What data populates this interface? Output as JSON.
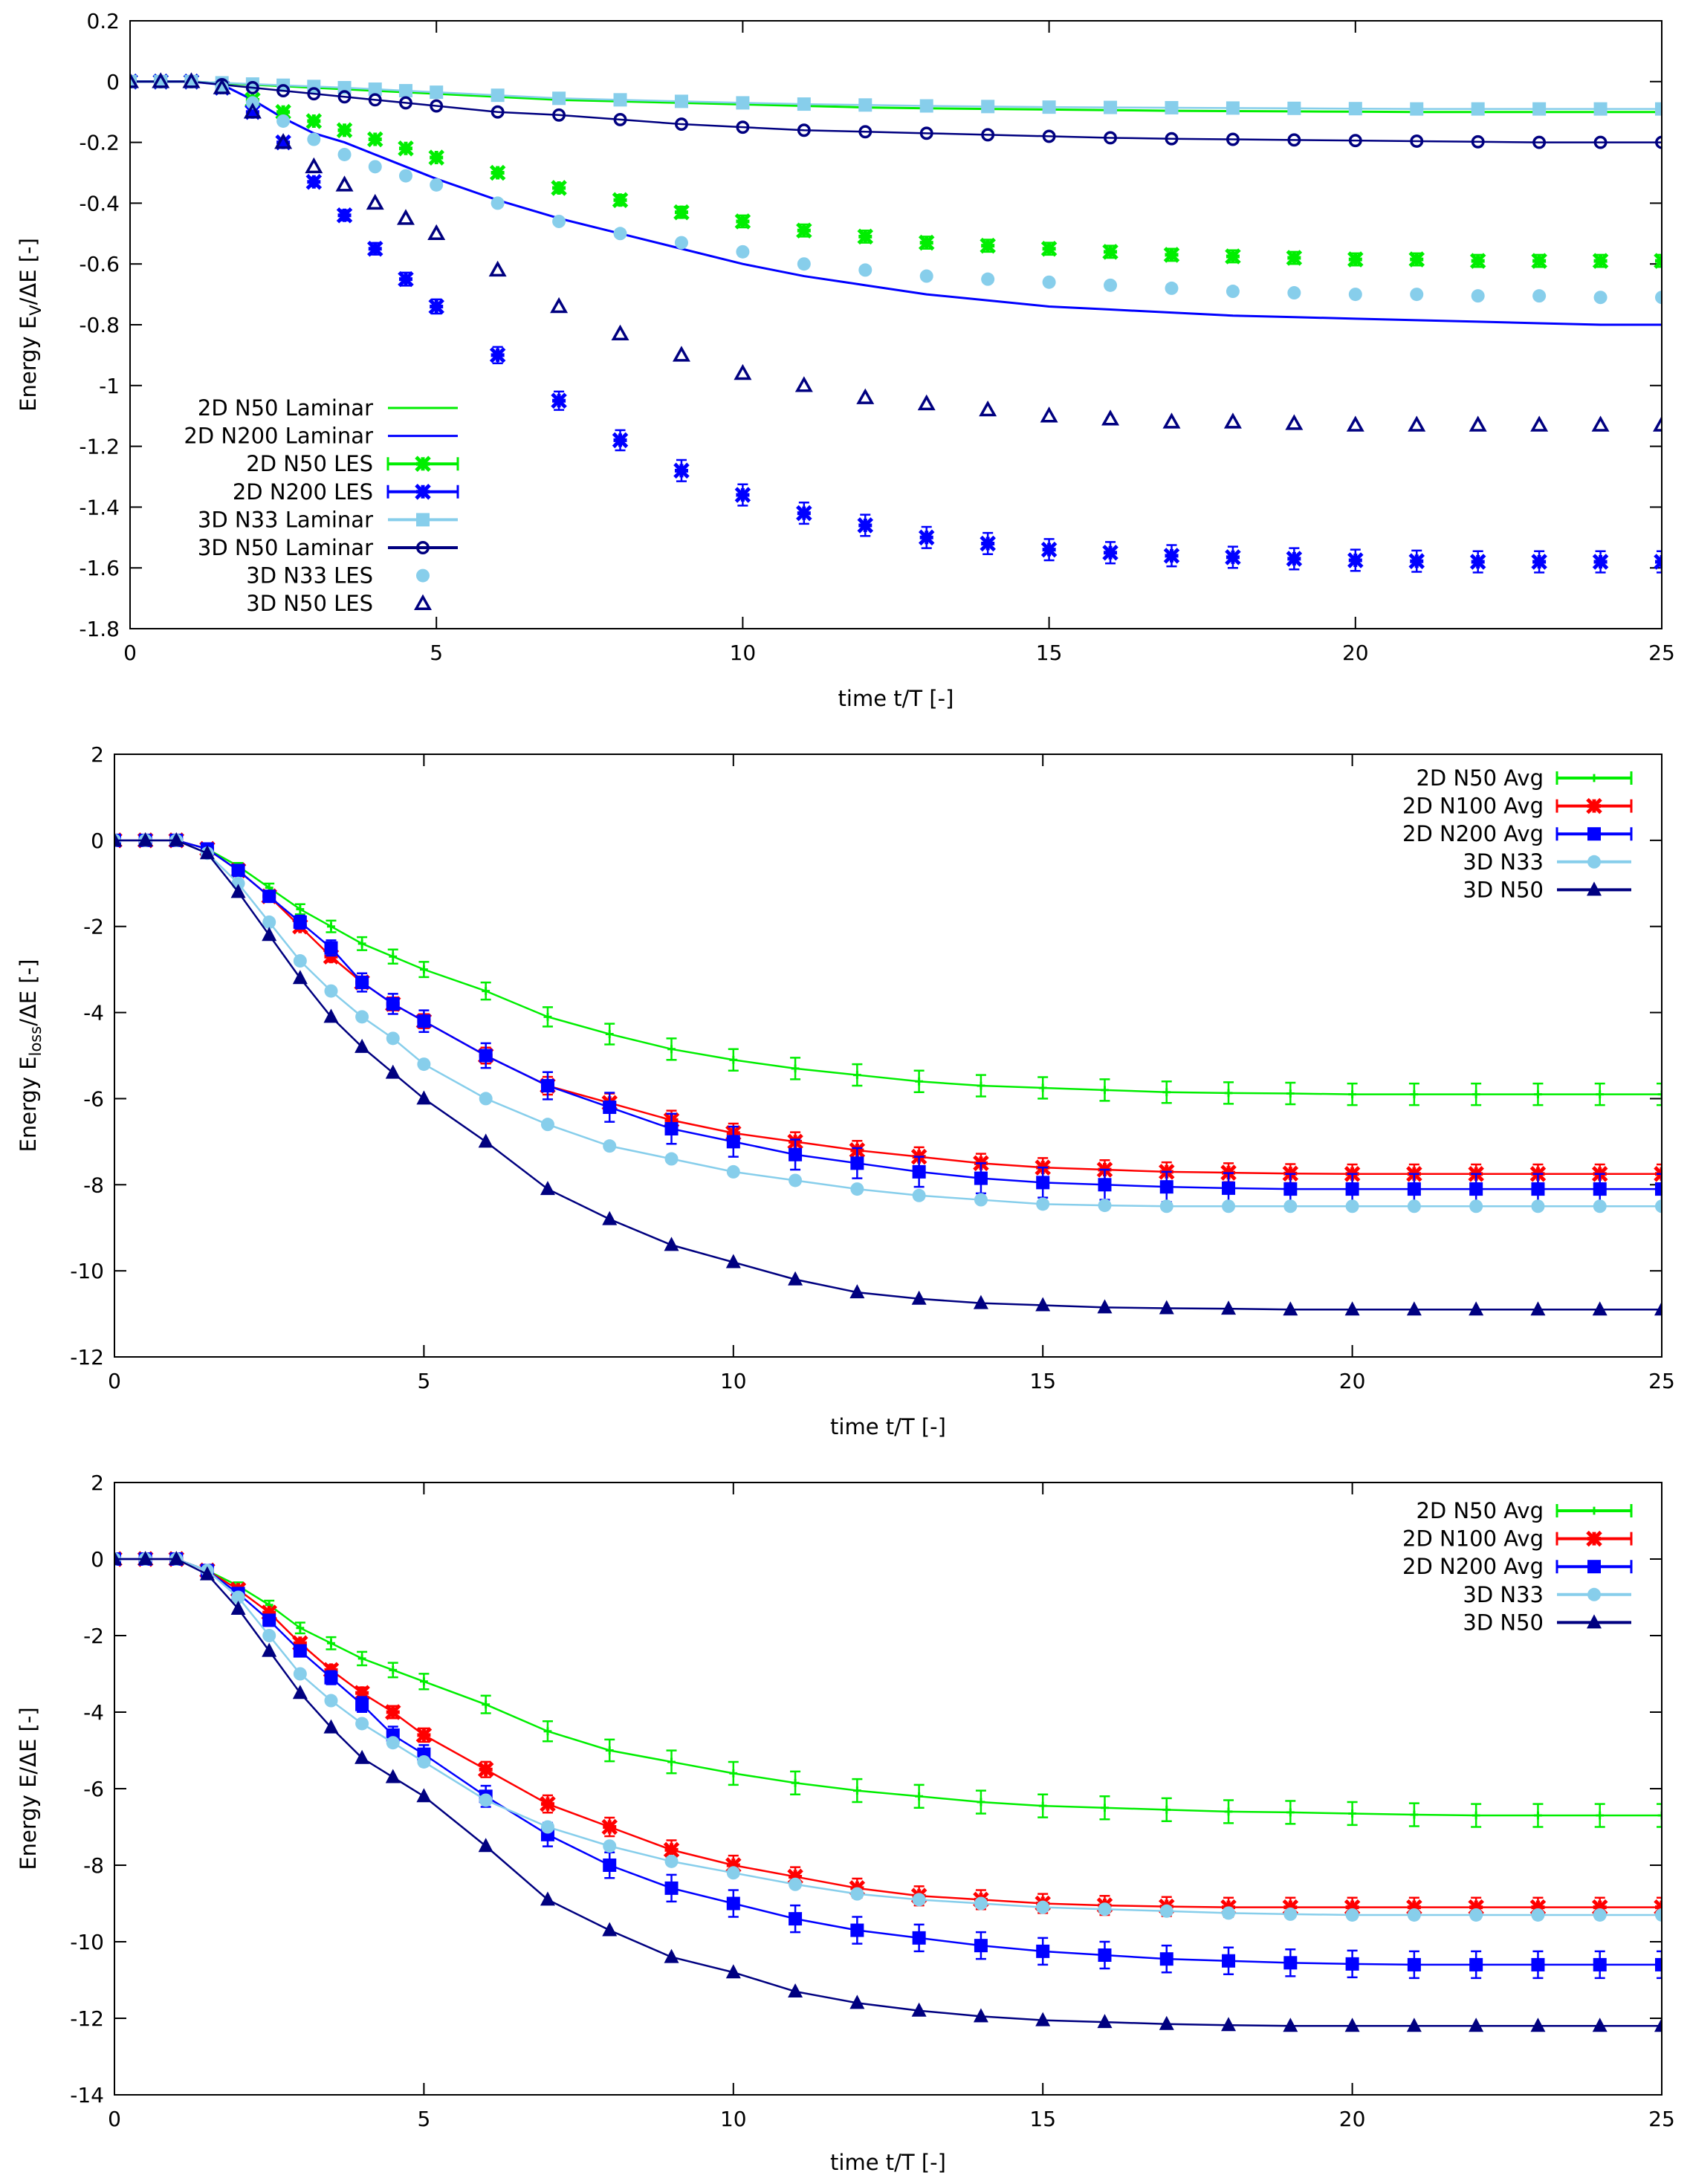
{
  "chart_data": [
    {
      "type": "line",
      "xlabel": "time t/T [-]",
      "ylabel": {
        "prefix": "Energy E",
        "sub": "V",
        "suffix": "/ΔE [-]"
      },
      "xlim": [
        0,
        25
      ],
      "ylim": [
        -1.8,
        0.2
      ],
      "xticks": [
        0,
        5,
        10,
        15,
        20,
        25
      ],
      "yticks": [
        0.2,
        0,
        -0.2,
        -0.4,
        -0.6,
        -0.8,
        -1,
        -1.2,
        -1.4,
        -1.6,
        -1.8
      ],
      "legend_position": "bottom-left",
      "x": [
        0,
        0.5,
        1,
        1.5,
        2,
        2.5,
        3,
        3.5,
        4,
        4.5,
        5,
        6,
        7,
        8,
        9,
        10,
        11,
        12,
        13,
        14,
        15,
        16,
        17,
        18,
        19,
        20,
        21,
        22,
        23,
        24,
        25
      ],
      "series": [
        {
          "name": "2D N50 Laminar",
          "color": "#00ee00",
          "marker": "none",
          "line": true,
          "err": 0,
          "values": [
            0,
            0,
            0,
            -0.005,
            -0.01,
            -0.015,
            -0.02,
            -0.025,
            -0.03,
            -0.035,
            -0.04,
            -0.05,
            -0.06,
            -0.065,
            -0.07,
            -0.075,
            -0.08,
            -0.085,
            -0.088,
            -0.09,
            -0.092,
            -0.094,
            -0.096,
            -0.097,
            -0.098,
            -0.099,
            -0.1,
            -0.1,
            -0.1,
            -0.1,
            -0.1
          ]
        },
        {
          "name": "2D N200 Laminar",
          "color": "#0000ff",
          "marker": "none",
          "line": true,
          "err": 0,
          "values": [
            0,
            0,
            0,
            -0.01,
            -0.06,
            -0.12,
            -0.17,
            -0.2,
            -0.24,
            -0.28,
            -0.32,
            -0.39,
            -0.45,
            -0.5,
            -0.55,
            -0.6,
            -0.64,
            -0.67,
            -0.7,
            -0.72,
            -0.74,
            -0.75,
            -0.76,
            -0.77,
            -0.775,
            -0.78,
            -0.785,
            -0.79,
            -0.795,
            -0.8,
            -0.8
          ]
        },
        {
          "name": "2D N50 LES",
          "color": "#00ee00",
          "marker": "star",
          "line": false,
          "err": 0.02,
          "values": [
            0,
            0,
            0,
            -0.02,
            -0.06,
            -0.1,
            -0.13,
            -0.16,
            -0.19,
            -0.22,
            -0.25,
            -0.3,
            -0.35,
            -0.39,
            -0.43,
            -0.46,
            -0.49,
            -0.51,
            -0.53,
            -0.54,
            -0.55,
            -0.56,
            -0.57,
            -0.575,
            -0.58,
            -0.585,
            -0.585,
            -0.59,
            -0.59,
            -0.59,
            -0.59
          ]
        },
        {
          "name": "2D N200 LES",
          "color": "#0000ff",
          "marker": "star",
          "line": false,
          "err": 0.035,
          "values": [
            0,
            0,
            0,
            -0.02,
            -0.1,
            -0.2,
            -0.33,
            -0.44,
            -0.55,
            -0.65,
            -0.74,
            -0.9,
            -1.05,
            -1.18,
            -1.28,
            -1.36,
            -1.42,
            -1.46,
            -1.5,
            -1.52,
            -1.54,
            -1.55,
            -1.56,
            -1.565,
            -1.57,
            -1.575,
            -1.578,
            -1.58,
            -1.58,
            -1.58,
            -1.58
          ]
        },
        {
          "name": "3D N33 Laminar",
          "color": "#87ceeb",
          "marker": "square",
          "line": true,
          "err": 0,
          "values": [
            0,
            0,
            0,
            -0.004,
            -0.008,
            -0.012,
            -0.016,
            -0.02,
            -0.025,
            -0.03,
            -0.035,
            -0.045,
            -0.055,
            -0.06,
            -0.065,
            -0.07,
            -0.074,
            -0.077,
            -0.08,
            -0.082,
            -0.084,
            -0.085,
            -0.086,
            -0.087,
            -0.088,
            -0.089,
            -0.09,
            -0.09,
            -0.09,
            -0.09,
            -0.09
          ]
        },
        {
          "name": "3D N50 Laminar",
          "color": "#000080",
          "marker": "circle-open",
          "line": true,
          "err": 0,
          "values": [
            0,
            0,
            0,
            -0.01,
            -0.02,
            -0.03,
            -0.04,
            -0.05,
            -0.06,
            -0.07,
            -0.08,
            -0.1,
            -0.11,
            -0.125,
            -0.14,
            -0.15,
            -0.16,
            -0.165,
            -0.17,
            -0.175,
            -0.18,
            -0.185,
            -0.188,
            -0.19,
            -0.192,
            -0.194,
            -0.196,
            -0.198,
            -0.2,
            -0.2,
            -0.2
          ]
        },
        {
          "name": "3D N33 LES",
          "color": "#87ceeb",
          "marker": "circle",
          "line": false,
          "err": 0,
          "values": [
            0,
            0,
            0,
            -0.02,
            -0.07,
            -0.13,
            -0.19,
            -0.24,
            -0.28,
            -0.31,
            -0.34,
            -0.4,
            -0.46,
            -0.5,
            -0.53,
            -0.56,
            -0.6,
            -0.62,
            -0.64,
            -0.65,
            -0.66,
            -0.67,
            -0.68,
            -0.69,
            -0.695,
            -0.7,
            -0.7,
            -0.705,
            -0.705,
            -0.71,
            -0.71
          ]
        },
        {
          "name": "3D N50 LES",
          "color": "#000080",
          "marker": "triangle-open",
          "line": false,
          "err": 0,
          "values": [
            0,
            0,
            0,
            -0.02,
            -0.1,
            -0.2,
            -0.28,
            -0.34,
            -0.4,
            -0.45,
            -0.5,
            -0.62,
            -0.74,
            -0.83,
            -0.9,
            -0.96,
            -1.0,
            -1.04,
            -1.06,
            -1.08,
            -1.1,
            -1.11,
            -1.12,
            -1.12,
            -1.125,
            -1.13,
            -1.13,
            -1.13,
            -1.13,
            -1.13,
            -1.13
          ]
        }
      ]
    },
    {
      "type": "line",
      "xlabel": "time t/T [-]",
      "ylabel": {
        "prefix": "Energy E",
        "sub": "loss",
        "suffix": "/ΔE [-]"
      },
      "xlim": [
        0,
        25
      ],
      "ylim": [
        -12,
        2
      ],
      "xticks": [
        0,
        5,
        10,
        15,
        20,
        25
      ],
      "yticks": [
        2,
        0,
        -2,
        -4,
        -6,
        -8,
        -10,
        -12
      ],
      "legend_position": "top-right",
      "x": [
        0,
        0.5,
        1,
        1.5,
        2,
        2.5,
        3,
        3.5,
        4,
        4.5,
        5,
        6,
        7,
        8,
        9,
        10,
        11,
        12,
        13,
        14,
        15,
        16,
        17,
        18,
        19,
        20,
        21,
        22,
        23,
        24,
        25
      ],
      "series": [
        {
          "name": "2D N50 Avg",
          "color": "#00ee00",
          "marker": "plus",
          "line": true,
          "err": 0.25,
          "values": [
            0,
            0,
            0,
            -0.2,
            -0.6,
            -1.1,
            -1.6,
            -2.0,
            -2.4,
            -2.7,
            -3.0,
            -3.5,
            -4.1,
            -4.5,
            -4.85,
            -5.1,
            -5.3,
            -5.45,
            -5.6,
            -5.7,
            -5.75,
            -5.8,
            -5.85,
            -5.87,
            -5.88,
            -5.9,
            -5.9,
            -5.9,
            -5.9,
            -5.9,
            -5.9
          ]
        },
        {
          "name": "2D N100 Avg",
          "color": "#ff0000",
          "marker": "star",
          "line": true,
          "err": 0.22,
          "values": [
            0,
            0,
            0,
            -0.2,
            -0.7,
            -1.3,
            -2.0,
            -2.7,
            -3.3,
            -3.8,
            -4.2,
            -5.0,
            -5.7,
            -6.1,
            -6.5,
            -6.8,
            -7.0,
            -7.2,
            -7.35,
            -7.5,
            -7.6,
            -7.65,
            -7.7,
            -7.72,
            -7.74,
            -7.75,
            -7.75,
            -7.75,
            -7.75,
            -7.75,
            -7.75
          ]
        },
        {
          "name": "2D N200 Avg",
          "color": "#0000ff",
          "marker": "square",
          "line": true,
          "err": 0.35,
          "values": [
            0,
            0,
            0,
            -0.2,
            -0.7,
            -1.3,
            -1.9,
            -2.5,
            -3.3,
            -3.8,
            -4.2,
            -5.0,
            -5.7,
            -6.2,
            -6.7,
            -7.0,
            -7.3,
            -7.5,
            -7.7,
            -7.85,
            -7.95,
            -8.0,
            -8.05,
            -8.08,
            -8.1,
            -8.1,
            -8.1,
            -8.1,
            -8.1,
            -8.1,
            -8.1
          ]
        },
        {
          "name": "3D N33",
          "color": "#87ceeb",
          "marker": "circle",
          "line": true,
          "err": 0,
          "values": [
            0,
            0,
            0,
            -0.3,
            -1.0,
            -1.9,
            -2.8,
            -3.5,
            -4.1,
            -4.6,
            -5.2,
            -6.0,
            -6.6,
            -7.1,
            -7.4,
            -7.7,
            -7.9,
            -8.1,
            -8.25,
            -8.35,
            -8.45,
            -8.48,
            -8.5,
            -8.5,
            -8.5,
            -8.5,
            -8.5,
            -8.5,
            -8.5,
            -8.5,
            -8.5
          ]
        },
        {
          "name": "3D N50",
          "color": "#000080",
          "marker": "triangle",
          "line": true,
          "err": 0,
          "values": [
            0,
            0,
            0,
            -0.3,
            -1.2,
            -2.2,
            -3.2,
            -4.1,
            -4.8,
            -5.4,
            -6.0,
            -7.0,
            -8.1,
            -8.8,
            -9.4,
            -9.8,
            -10.2,
            -10.5,
            -10.65,
            -10.75,
            -10.8,
            -10.85,
            -10.87,
            -10.88,
            -10.9,
            -10.9,
            -10.9,
            -10.9,
            -10.9,
            -10.9,
            -10.9
          ]
        }
      ]
    },
    {
      "type": "line",
      "xlabel": "time t/T [-]",
      "ylabel": {
        "prefix": "Energy E",
        "sub": "",
        "suffix": "/ΔE [-]"
      },
      "xlim": [
        0,
        25
      ],
      "ylim": [
        -14,
        2
      ],
      "xticks": [
        0,
        5,
        10,
        15,
        20,
        25
      ],
      "yticks": [
        2,
        0,
        -2,
        -4,
        -6,
        -8,
        -10,
        -12,
        -14
      ],
      "legend_position": "top-right",
      "x": [
        0,
        0.5,
        1,
        1.5,
        2,
        2.5,
        3,
        3.5,
        4,
        4.5,
        5,
        6,
        7,
        8,
        9,
        10,
        11,
        12,
        13,
        14,
        15,
        16,
        17,
        18,
        19,
        20,
        21,
        22,
        23,
        24,
        25
      ],
      "series": [
        {
          "name": "2D N50 Avg",
          "color": "#00ee00",
          "marker": "plus",
          "line": true,
          "err": 0.3,
          "values": [
            0,
            0,
            0,
            -0.3,
            -0.7,
            -1.2,
            -1.8,
            -2.2,
            -2.6,
            -2.9,
            -3.2,
            -3.8,
            -4.5,
            -5.0,
            -5.3,
            -5.6,
            -5.85,
            -6.05,
            -6.2,
            -6.35,
            -6.45,
            -6.5,
            -6.55,
            -6.6,
            -6.62,
            -6.65,
            -6.68,
            -6.7,
            -6.7,
            -6.7,
            -6.7
          ]
        },
        {
          "name": "2D N100 Avg",
          "color": "#ff0000",
          "marker": "star",
          "line": true,
          "err": 0.25,
          "values": [
            0,
            0,
            0,
            -0.3,
            -0.8,
            -1.4,
            -2.2,
            -2.9,
            -3.5,
            -4.0,
            -4.6,
            -5.5,
            -6.4,
            -7.0,
            -7.6,
            -8.0,
            -8.3,
            -8.6,
            -8.8,
            -8.9,
            -9.0,
            -9.05,
            -9.08,
            -9.1,
            -9.1,
            -9.1,
            -9.1,
            -9.1,
            -9.1,
            -9.1,
            -9.1
          ]
        },
        {
          "name": "2D N200 Avg",
          "color": "#0000ff",
          "marker": "square",
          "line": true,
          "err": 0.35,
          "values": [
            0,
            0,
            0,
            -0.3,
            -0.9,
            -1.6,
            -2.4,
            -3.1,
            -3.8,
            -4.6,
            -5.1,
            -6.2,
            -7.2,
            -8.0,
            -8.6,
            -9.0,
            -9.4,
            -9.7,
            -9.9,
            -10.1,
            -10.25,
            -10.35,
            -10.45,
            -10.5,
            -10.55,
            -10.58,
            -10.6,
            -10.6,
            -10.6,
            -10.6,
            -10.6
          ]
        },
        {
          "name": "3D N33",
          "color": "#87ceeb",
          "marker": "circle",
          "line": true,
          "err": 0,
          "values": [
            0,
            0,
            0,
            -0.3,
            -1.0,
            -2.0,
            -3.0,
            -3.7,
            -4.3,
            -4.8,
            -5.3,
            -6.3,
            -7.0,
            -7.5,
            -7.9,
            -8.2,
            -8.5,
            -8.75,
            -8.9,
            -9.0,
            -9.1,
            -9.15,
            -9.2,
            -9.25,
            -9.28,
            -9.3,
            -9.3,
            -9.3,
            -9.3,
            -9.3,
            -9.3
          ]
        },
        {
          "name": "3D N50",
          "color": "#000080",
          "marker": "triangle",
          "line": true,
          "err": 0,
          "values": [
            0,
            0,
            0,
            -0.4,
            -1.3,
            -2.4,
            -3.5,
            -4.4,
            -5.2,
            -5.7,
            -6.2,
            -7.5,
            -8.9,
            -9.7,
            -10.4,
            -10.8,
            -11.3,
            -11.6,
            -11.8,
            -11.95,
            -12.05,
            -12.1,
            -12.15,
            -12.18,
            -12.2,
            -12.2,
            -12.2,
            -12.2,
            -12.2,
            -12.2,
            -12.2
          ]
        }
      ]
    }
  ]
}
